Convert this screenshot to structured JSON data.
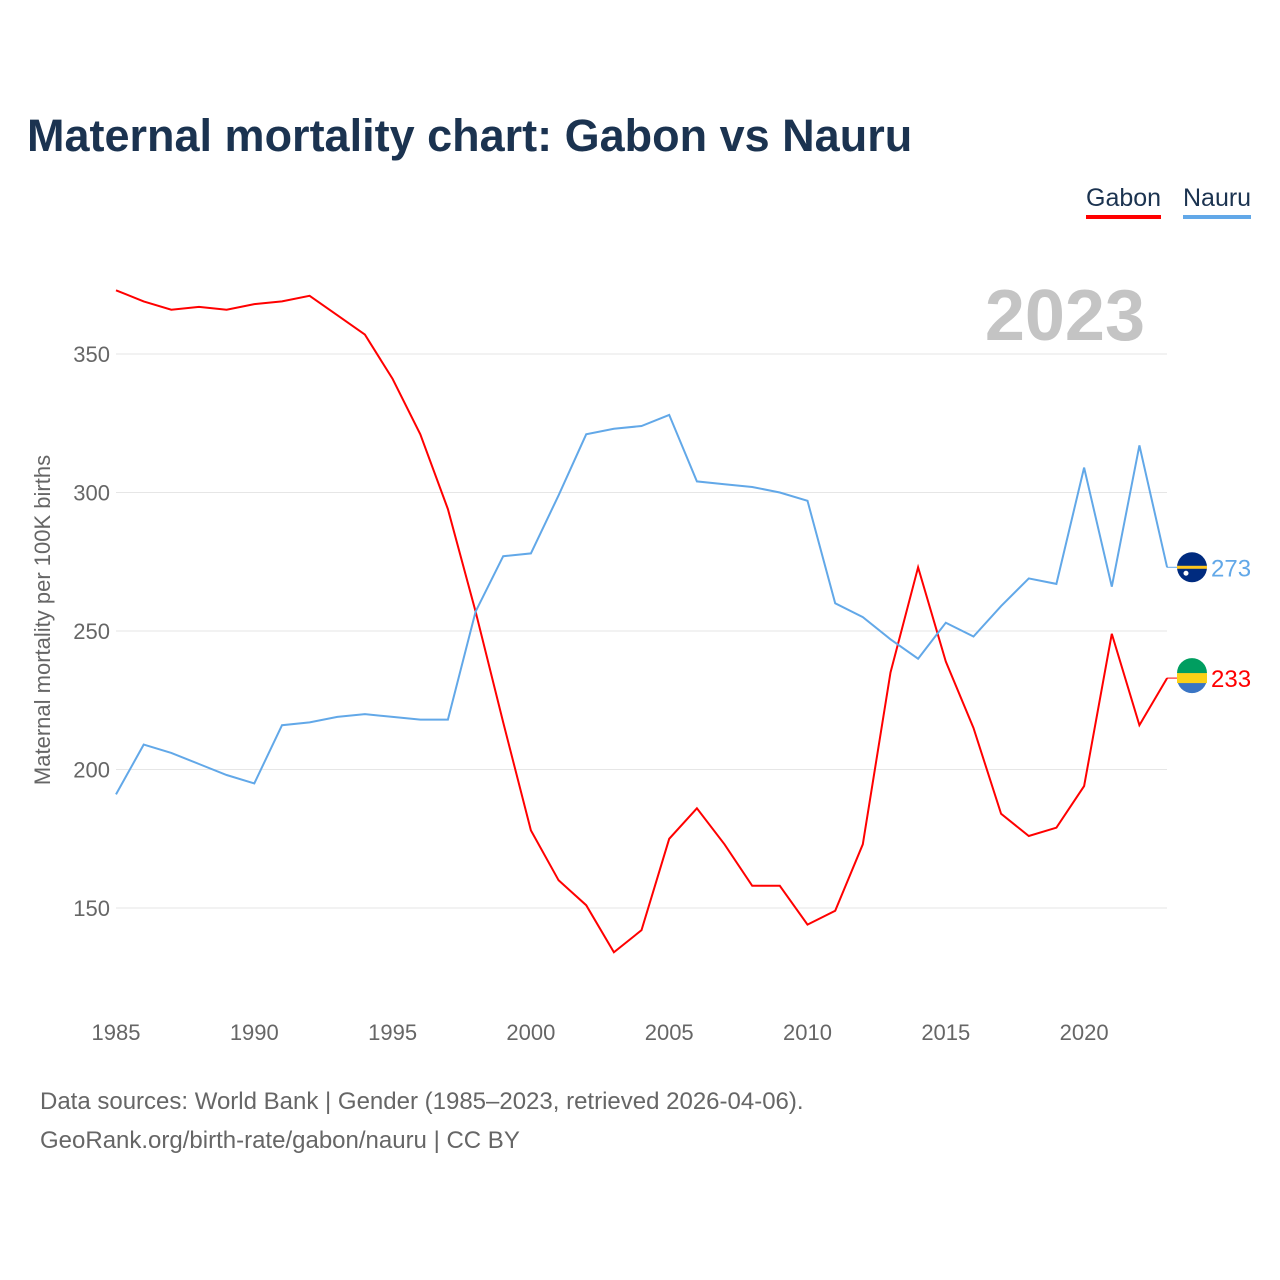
{
  "title": "Maternal mortality chart: Gabon vs Nauru",
  "year_watermark": "2023",
  "source_line1": "Data sources: World Bank | Gender (1985–2023, retrieved 2026-04-06).",
  "source_line2": "GeoRank.org/birth-rate/gabon/nauru | CC BY",
  "chart_data": {
    "type": "line",
    "title": "Maternal mortality chart: Gabon vs Nauru",
    "xlabel": "",
    "ylabel": "Maternal mortality per 100K births",
    "xlim": [
      1985,
      2023
    ],
    "ylim": [
      118,
      380
    ],
    "xticks": [
      1985,
      1990,
      1995,
      2000,
      2005,
      2010,
      2015,
      2020
    ],
    "yticks": [
      150,
      200,
      250,
      300,
      350
    ],
    "grid": true,
    "legend_position": "top-right",
    "x": [
      1985,
      1986,
      1987,
      1988,
      1989,
      1990,
      1991,
      1992,
      1993,
      1994,
      1995,
      1996,
      1997,
      1998,
      1999,
      2000,
      2001,
      2002,
      2003,
      2004,
      2005,
      2006,
      2007,
      2008,
      2009,
      2010,
      2011,
      2012,
      2013,
      2014,
      2015,
      2016,
      2017,
      2018,
      2019,
      2020,
      2021,
      2022,
      2023
    ],
    "series": [
      {
        "name": "Gabon",
        "color": "#ff0000",
        "end_label": "233",
        "values": [
          373,
          369,
          366,
          367,
          366,
          368,
          369,
          371,
          364,
          357,
          341,
          321,
          294,
          257,
          217,
          178,
          160,
          151,
          134,
          142,
          175,
          186,
          173,
          158,
          158,
          144,
          149,
          173,
          235,
          273,
          239,
          215,
          184,
          176,
          179,
          194,
          249,
          216,
          233
        ]
      },
      {
        "name": "Nauru",
        "color": "#62a8e8",
        "end_label": "273",
        "values": [
          191,
          209,
          206,
          202,
          198,
          195,
          216,
          217,
          219,
          220,
          219,
          218,
          218,
          257,
          277,
          278,
          299,
          321,
          323,
          324,
          328,
          304,
          303,
          302,
          300,
          297,
          260,
          255,
          247,
          240,
          253,
          248,
          259,
          269,
          267,
          309,
          266,
          317,
          273
        ]
      }
    ]
  }
}
